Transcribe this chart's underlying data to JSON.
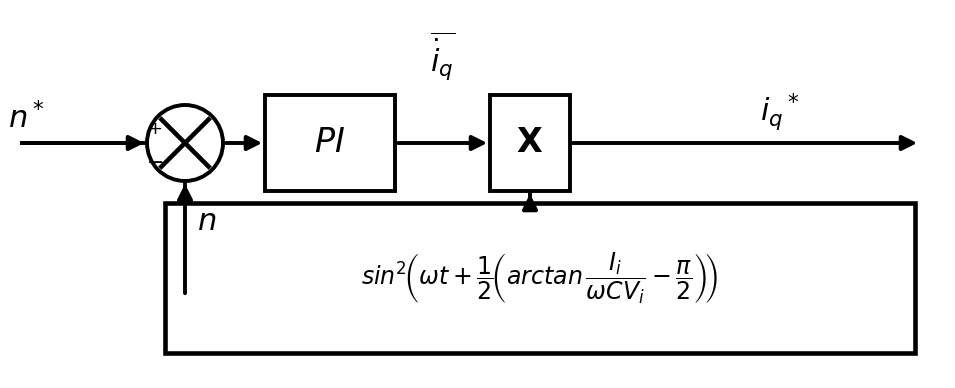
{
  "bg_color": "#ffffff",
  "line_color": "#000000",
  "fig_width": 9.55,
  "fig_height": 3.88,
  "dpi": 100
}
